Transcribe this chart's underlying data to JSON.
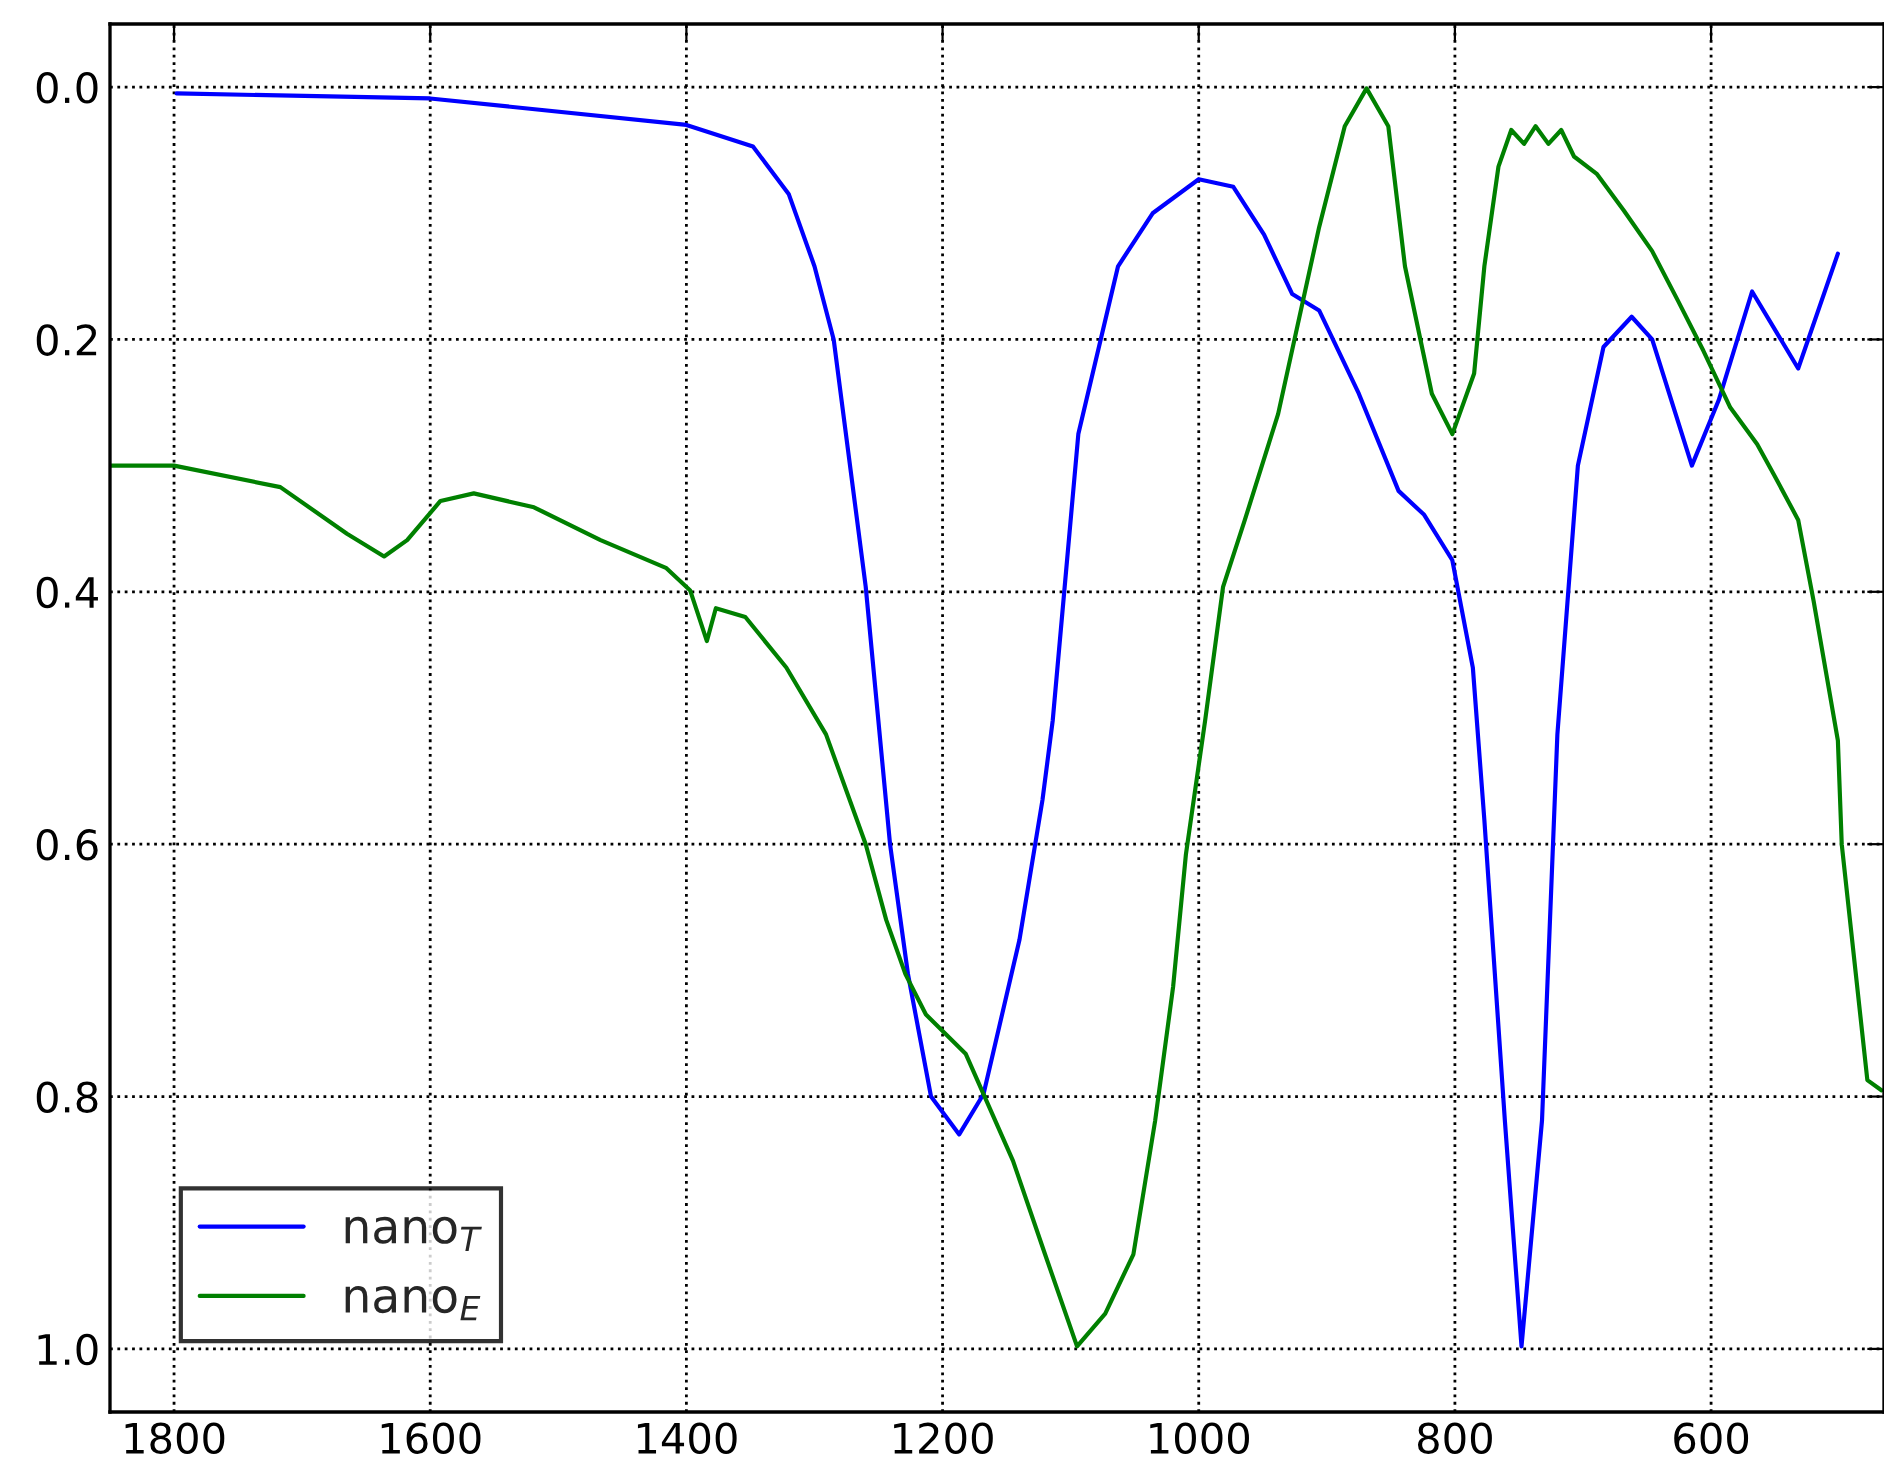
{
  "chart_data": {
    "type": "line",
    "xlim": [
      1850,
      465
    ],
    "ylim": [
      1.05,
      -0.05
    ],
    "xticks": [
      1800,
      1600,
      1400,
      1200,
      1000,
      800,
      600
    ],
    "yticks": [
      {
        "value": 0.0,
        "label": "0.0"
      },
      {
        "value": 0.2,
        "label": "0.2"
      },
      {
        "value": 0.4,
        "label": "0.4"
      },
      {
        "value": 0.6,
        "label": "0.6"
      },
      {
        "value": 0.8,
        "label": "0.8"
      },
      {
        "value": 1.0,
        "label": "1.0"
      }
    ],
    "grid": true,
    "legend": "bottom left",
    "line_style": "solid",
    "marker": "none",
    "series": [
      {
        "name": "nano$_{T}$",
        "color": "#0000ff",
        "x": [
          1798,
          1600,
          1400,
          1348,
          1320,
          1300,
          1285,
          1260,
          1241,
          1227,
          1209,
          1187,
          1168,
          1140,
          1122,
          1114,
          1094,
          1063,
          1036,
          1000,
          973,
          949,
          927,
          906,
          875,
          844,
          824,
          802,
          786,
          777,
          761,
          748,
          732,
          720,
          704,
          684,
          662,
          646,
          615,
          594,
          568,
          532,
          501
        ],
        "values": [
          0.005,
          0.009,
          0.03,
          0.047,
          0.085,
          0.142,
          0.2,
          0.396,
          0.6,
          0.703,
          0.8,
          0.83,
          0.798,
          0.676,
          0.565,
          0.502,
          0.275,
          0.142,
          0.1,
          0.073,
          0.079,
          0.117,
          0.164,
          0.177,
          0.243,
          0.32,
          0.339,
          0.375,
          0.46,
          0.581,
          0.819,
          0.998,
          0.819,
          0.513,
          0.3,
          0.206,
          0.182,
          0.2,
          0.3,
          0.248,
          0.162,
          0.223,
          0.132
        ]
      },
      {
        "name": "nano$_{E}$",
        "color": "#008000",
        "x": [
          1850,
          1800,
          1717,
          1665,
          1636,
          1618,
          1592,
          1566,
          1519,
          1467,
          1416,
          1397,
          1384,
          1377,
          1354,
          1322,
          1291,
          1260,
          1244,
          1229,
          1213,
          1182,
          1145,
          1120,
          1095,
          1073,
          1051,
          1034,
          1020,
          1010,
          995,
          981,
          964,
          938,
          906,
          886,
          869,
          852,
          839,
          818,
          802,
          785,
          777,
          766,
          756,
          746,
          737,
          727,
          717,
          707,
          689,
          668,
          646,
          626,
          606,
          585,
          564,
          551,
          532,
          520,
          501,
          498,
          478,
          467
        ],
        "values": [
          0.3,
          0.3,
          0.317,
          0.354,
          0.372,
          0.359,
          0.328,
          0.322,
          0.333,
          0.359,
          0.381,
          0.399,
          0.439,
          0.413,
          0.42,
          0.46,
          0.513,
          0.6,
          0.66,
          0.703,
          0.735,
          0.766,
          0.851,
          0.925,
          0.998,
          0.972,
          0.925,
          0.819,
          0.713,
          0.608,
          0.502,
          0.396,
          0.343,
          0.259,
          0.111,
          0.031,
          0.001,
          0.031,
          0.142,
          0.243,
          0.275,
          0.227,
          0.142,
          0.063,
          0.034,
          0.045,
          0.031,
          0.045,
          0.034,
          0.055,
          0.069,
          0.098,
          0.13,
          0.169,
          0.209,
          0.254,
          0.283,
          0.307,
          0.343,
          0.407,
          0.518,
          0.6,
          0.787,
          0.795
        ]
      }
    ]
  }
}
